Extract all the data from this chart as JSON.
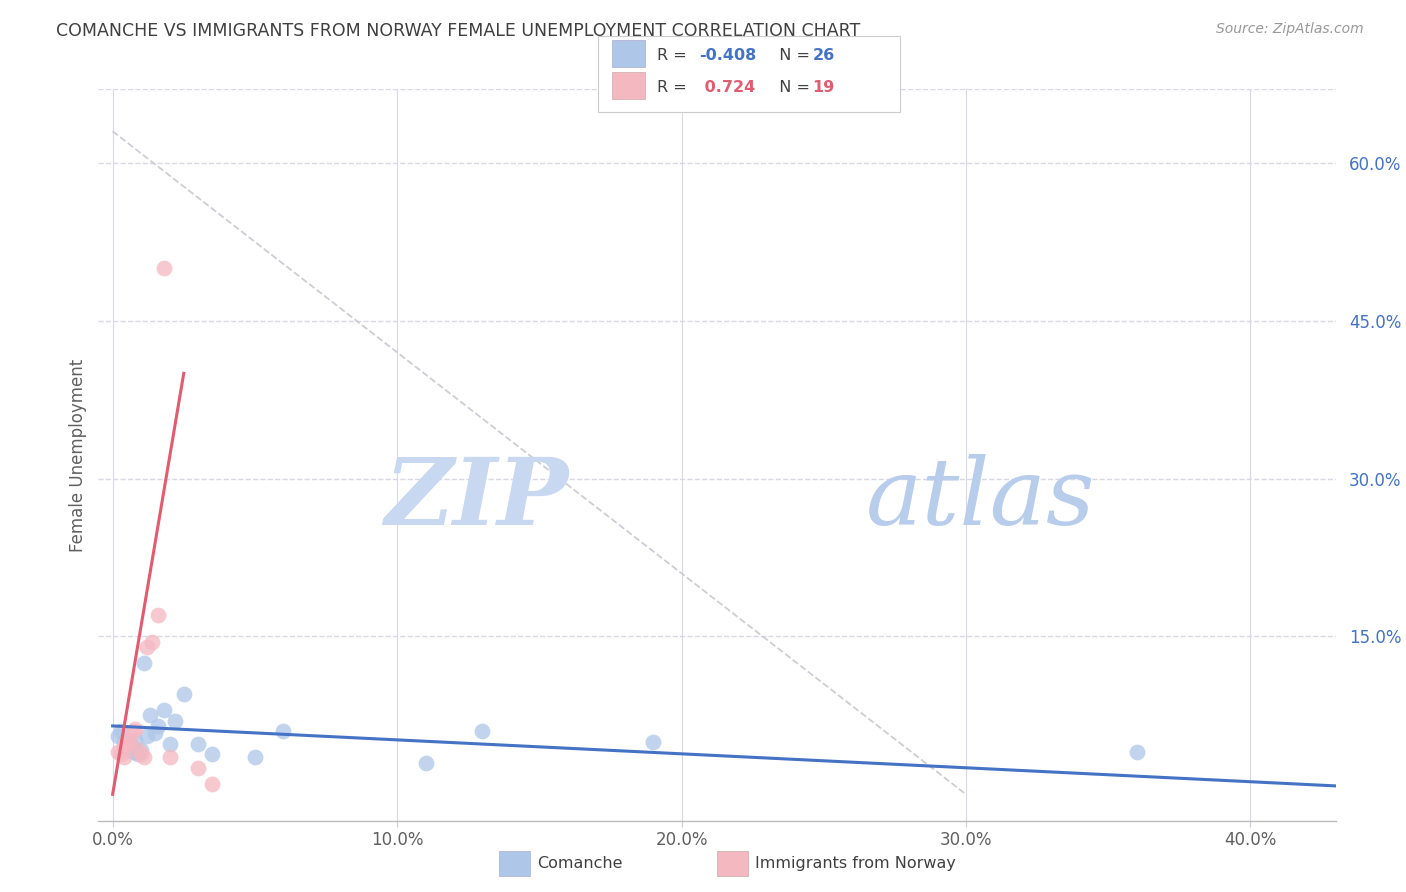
{
  "title": "COMANCHE VS IMMIGRANTS FROM NORWAY FEMALE UNEMPLOYMENT CORRELATION CHART",
  "source": "Source: ZipAtlas.com",
  "ylabel": "Female Unemployment",
  "x_tick_labels": [
    "0.0%",
    "10.0%",
    "20.0%",
    "30.0%",
    "40.0%"
  ],
  "x_tick_values": [
    0.0,
    0.1,
    0.2,
    0.3,
    0.4
  ],
  "y_tick_labels": [
    "15.0%",
    "30.0%",
    "45.0%",
    "60.0%"
  ],
  "y_tick_values": [
    0.15,
    0.3,
    0.45,
    0.6
  ],
  "xlim": [
    -0.005,
    0.43
  ],
  "ylim": [
    -0.025,
    0.67
  ],
  "comanche_color": "#aec6e8",
  "norway_color": "#f4b8c1",
  "comanche_line_color": "#4472c4",
  "norway_line_color": "#e05c6e",
  "dashed_color": "#c8c8d0",
  "watermark_zip_color": "#c8d8f0",
  "watermark_atlas_color": "#b0c8e8",
  "background_color": "#ffffff",
  "grid_color": "#d8d8e8",
  "title_color": "#404040",
  "axis_label_color": "#606060",
  "tick_label_color_right": "#4472c4",
  "tick_label_color_bottom": "#606060",
  "comanche_x": [
    0.002,
    0.003,
    0.004,
    0.005,
    0.006,
    0.007,
    0.008,
    0.009,
    0.01,
    0.011,
    0.012,
    0.013,
    0.015,
    0.016,
    0.018,
    0.02,
    0.022,
    0.025,
    0.03,
    0.035,
    0.05,
    0.06,
    0.11,
    0.13,
    0.19,
    0.36
  ],
  "comanche_y": [
    0.055,
    0.06,
    0.05,
    0.045,
    0.048,
    0.04,
    0.052,
    0.038,
    0.042,
    0.125,
    0.055,
    0.075,
    0.058,
    0.065,
    0.08,
    0.048,
    0.07,
    0.095,
    0.048,
    0.038,
    0.035,
    0.06,
    0.03,
    0.06,
    0.05,
    0.04
  ],
  "norway_x": [
    0.002,
    0.003,
    0.004,
    0.004,
    0.005,
    0.005,
    0.006,
    0.007,
    0.008,
    0.009,
    0.01,
    0.011,
    0.012,
    0.014,
    0.016,
    0.018,
    0.02,
    0.03,
    0.035
  ],
  "norway_y": [
    0.04,
    0.038,
    0.035,
    0.045,
    0.048,
    0.052,
    0.05,
    0.06,
    0.062,
    0.042,
    0.038,
    0.035,
    0.14,
    0.145,
    0.17,
    0.5,
    0.035,
    0.025,
    0.01
  ]
}
